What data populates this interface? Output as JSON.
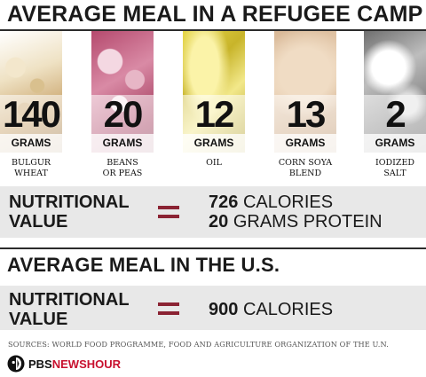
{
  "title": "AVERAGE MEAL IN A REFUGEE CAMP",
  "items": [
    {
      "amount": "140",
      "unit": "GRAMS",
      "label_line1": "BULGUR",
      "label_line2": "WHEAT"
    },
    {
      "amount": "20",
      "unit": "GRAMS",
      "label_line1": "BEANS",
      "label_line2": "OR PEAS"
    },
    {
      "amount": "12",
      "unit": "GRAMS",
      "label_line1": "OIL",
      "label_line2": ""
    },
    {
      "amount": "13",
      "unit": "GRAMS",
      "label_line1": "CORN SOYA",
      "label_line2": "BLEND"
    },
    {
      "amount": "2",
      "unit": "GRAMS",
      "label_line1": "IODIZED",
      "label_line2": "SALT"
    }
  ],
  "refugee_nutrition": {
    "label_line1": "NUTRITIONAL",
    "label_line2": "VALUE",
    "calories_value": "726",
    "calories_unit": "CALORIES",
    "protein_value": "20",
    "protein_unit": "GRAMS PROTEIN"
  },
  "us_section": {
    "title": "AVERAGE MEAL IN THE U.S.",
    "label_line1": "NUTRITIONAL",
    "label_line2": "VALUE",
    "calories_value": "900",
    "calories_unit": "CALORIES"
  },
  "sources": "SOURCES: WORLD FOOD PROGRAMME, FOOD AND AGRICULTURE ORGANIZATION OF THE U.N.",
  "logo": {
    "pbs": "PBS",
    "newshour": "NEWSHOUR"
  },
  "colors": {
    "accent": "#8b2333",
    "panel": "#e8e8e8"
  }
}
